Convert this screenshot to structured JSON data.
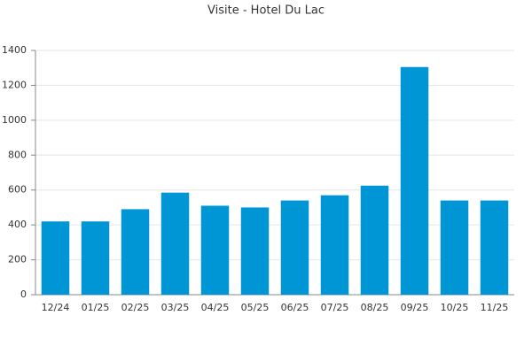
{
  "chart_data": {
    "type": "bar",
    "title": "Visite - Hotel Du Lac",
    "categories": [
      "12/24",
      "01/25",
      "02/25",
      "03/25",
      "04/25",
      "05/25",
      "06/25",
      "07/25",
      "08/25",
      "09/25",
      "10/25",
      "11/25"
    ],
    "values": [
      420,
      420,
      490,
      585,
      510,
      500,
      540,
      570,
      625,
      1305,
      540,
      540
    ],
    "color": "#0096d6",
    "ylim": [
      0,
      1400
    ],
    "yticks": [
      0,
      200,
      400,
      600,
      800,
      1000,
      1200,
      1400
    ],
    "grid": true
  }
}
